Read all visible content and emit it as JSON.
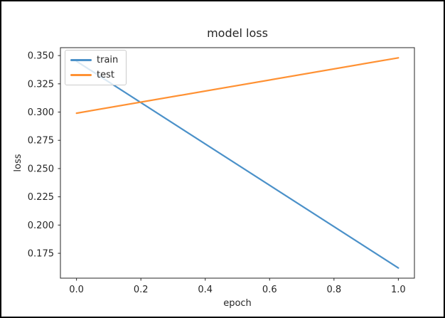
{
  "figure": {
    "background": "#ffffff",
    "frame_border_color": "#000000",
    "axis_color": "#262626"
  },
  "chart_data": {
    "type": "line",
    "title": "model loss",
    "xlabel": "epoch",
    "ylabel": "loss",
    "x": [
      0.0,
      1.0
    ],
    "series": [
      {
        "name": "train",
        "values": [
          0.345,
          0.162
        ],
        "color": "#4b91c9"
      },
      {
        "name": "test",
        "values": [
          0.299,
          0.348
        ],
        "color": "#ff9133"
      }
    ],
    "xlim": [
      -0.05,
      1.05
    ],
    "ylim": [
      0.153,
      0.357
    ],
    "xticks": {
      "values": [
        0.0,
        0.2,
        0.4,
        0.6,
        0.8,
        1.0
      ],
      "labels": [
        "0.0",
        "0.2",
        "0.4",
        "0.6",
        "0.8",
        "1.0"
      ]
    },
    "yticks": {
      "values": [
        0.175,
        0.2,
        0.225,
        0.25,
        0.275,
        0.3,
        0.325,
        0.35
      ],
      "labels": [
        "0.175",
        "0.200",
        "0.225",
        "0.250",
        "0.275",
        "0.300",
        "0.325",
        "0.350"
      ]
    },
    "grid": false,
    "legend_position": "upper left"
  }
}
